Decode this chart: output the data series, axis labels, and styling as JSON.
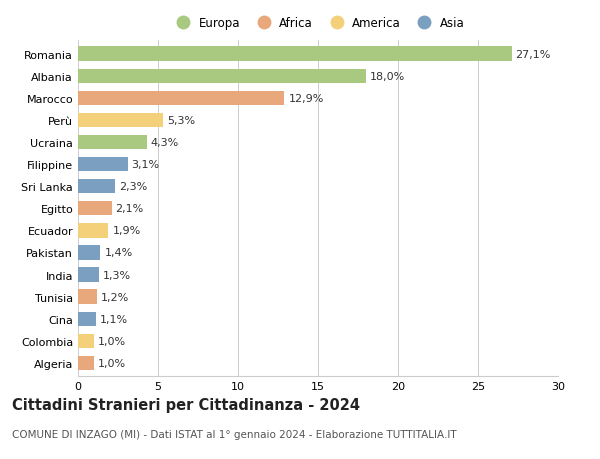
{
  "countries": [
    "Romania",
    "Albania",
    "Marocco",
    "Perù",
    "Ucraina",
    "Filippine",
    "Sri Lanka",
    "Egitto",
    "Ecuador",
    "Pakistan",
    "India",
    "Tunisia",
    "Cina",
    "Colombia",
    "Algeria"
  ],
  "values": [
    27.1,
    18.0,
    12.9,
    5.3,
    4.3,
    3.1,
    2.3,
    2.1,
    1.9,
    1.4,
    1.3,
    1.2,
    1.1,
    1.0,
    1.0
  ],
  "labels": [
    "27,1%",
    "18,0%",
    "12,9%",
    "5,3%",
    "4,3%",
    "3,1%",
    "2,3%",
    "2,1%",
    "1,9%",
    "1,4%",
    "1,3%",
    "1,2%",
    "1,1%",
    "1,0%",
    "1,0%"
  ],
  "regions": [
    "Europa",
    "Europa",
    "Africa",
    "America",
    "Europa",
    "Asia",
    "Asia",
    "Africa",
    "America",
    "Asia",
    "Asia",
    "Africa",
    "Asia",
    "America",
    "Africa"
  ],
  "colors": {
    "Europa": "#a8c97f",
    "Africa": "#e8a87c",
    "America": "#f5d07a",
    "Asia": "#7a9fc0"
  },
  "title": "Cittadini Stranieri per Cittadinanza - 2024",
  "subtitle": "COMUNE DI INZAGO (MI) - Dati ISTAT al 1° gennaio 2024 - Elaborazione TUTTITALIA.IT",
  "xlim": [
    0,
    30
  ],
  "xticks": [
    0,
    5,
    10,
    15,
    20,
    25,
    30
  ],
  "background_color": "#ffffff",
  "bar_height": 0.65,
  "grid_color": "#cccccc",
  "label_fontsize": 8,
  "tick_fontsize": 8,
  "title_fontsize": 10.5,
  "subtitle_fontsize": 7.5,
  "legend_fontsize": 8.5
}
